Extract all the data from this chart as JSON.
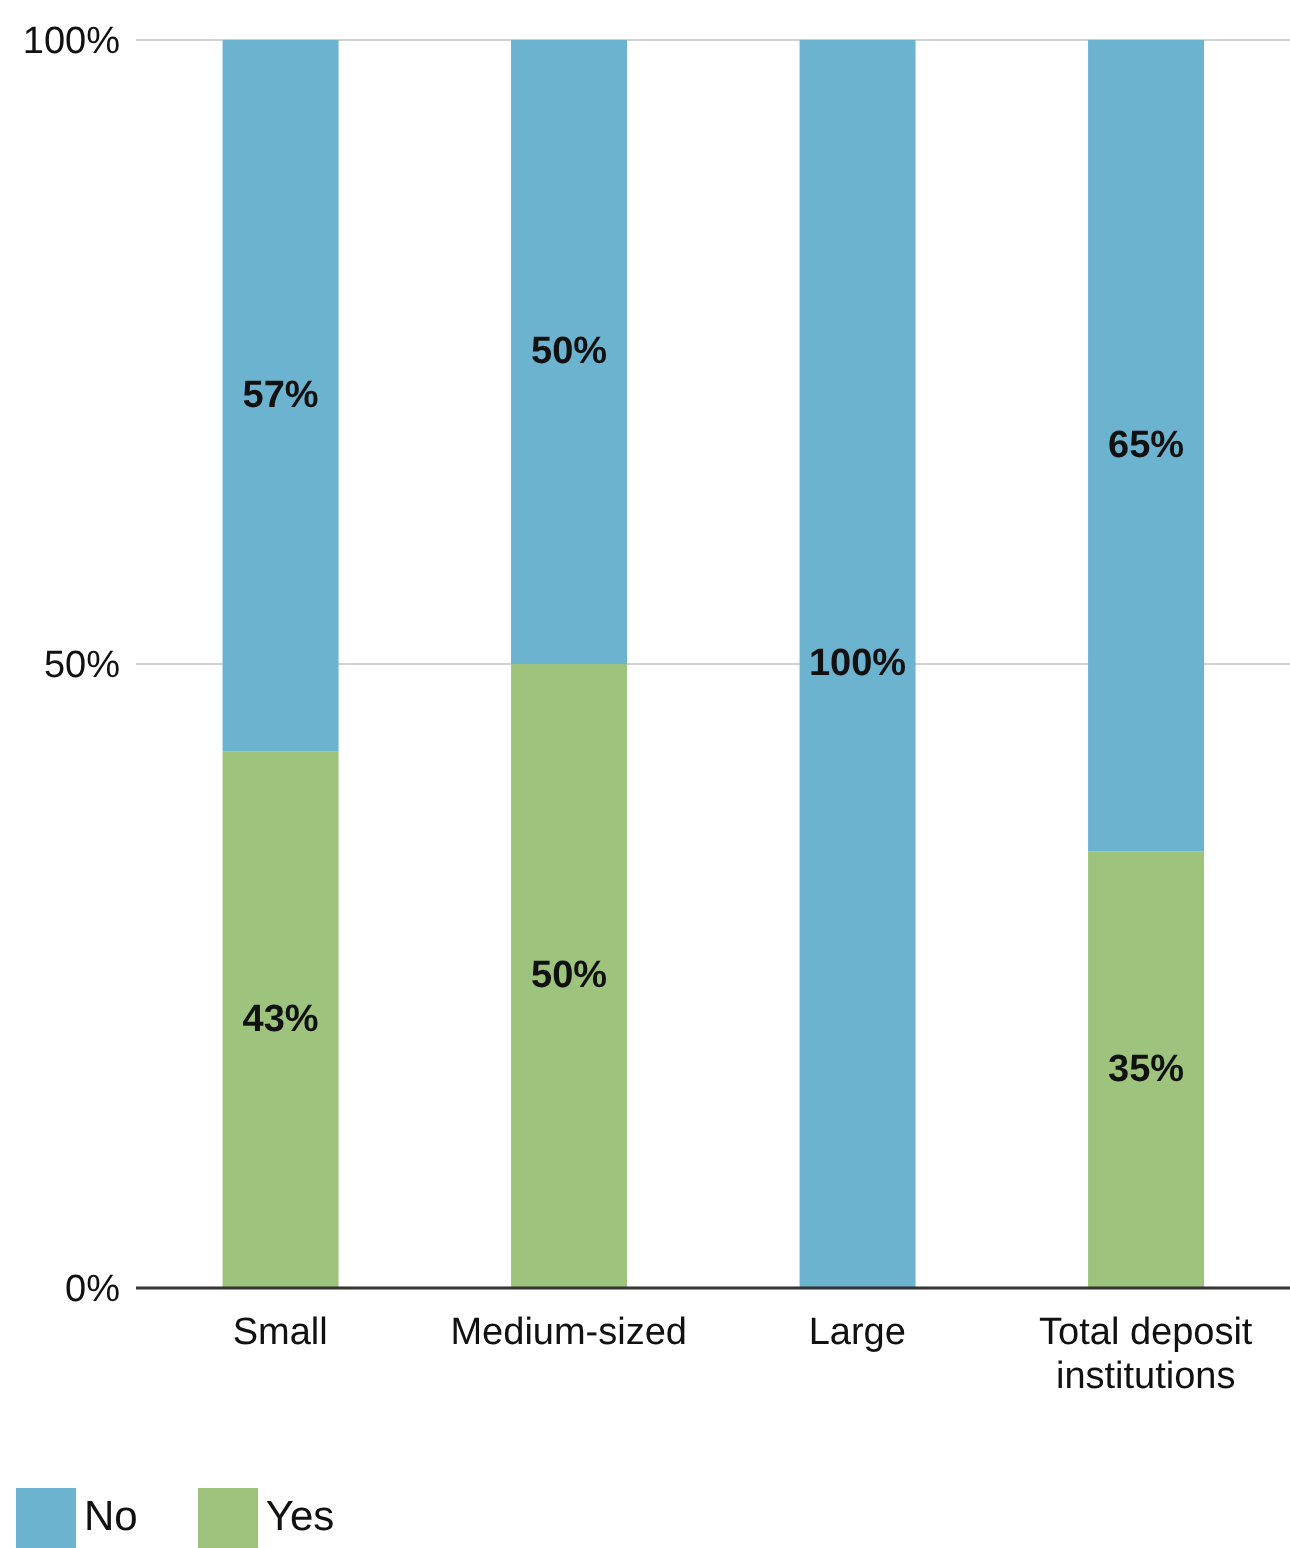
{
  "chart_data": {
    "type": "bar",
    "stacked": true,
    "categories": [
      "Small",
      "Medium-sized",
      "Large",
      "Total deposit institutions"
    ],
    "series": [
      {
        "name": "Yes",
        "color": "#9dc37c",
        "values": [
          43,
          50,
          0,
          35
        ],
        "value_labels": [
          "43%",
          "50%",
          null,
          "35%"
        ]
      },
      {
        "name": "No",
        "color": "#6cb3cf",
        "values": [
          57,
          50,
          100,
          65
        ],
        "value_labels": [
          "57%",
          "50%",
          "100%",
          "65%"
        ]
      }
    ],
    "ylim": [
      0,
      100
    ],
    "yticks": [
      {
        "value": 0,
        "label": "0%"
      },
      {
        "value": 50,
        "label": "50%"
      },
      {
        "value": 100,
        "label": "100%"
      }
    ],
    "grid": "y",
    "legend": "bottom left"
  }
}
